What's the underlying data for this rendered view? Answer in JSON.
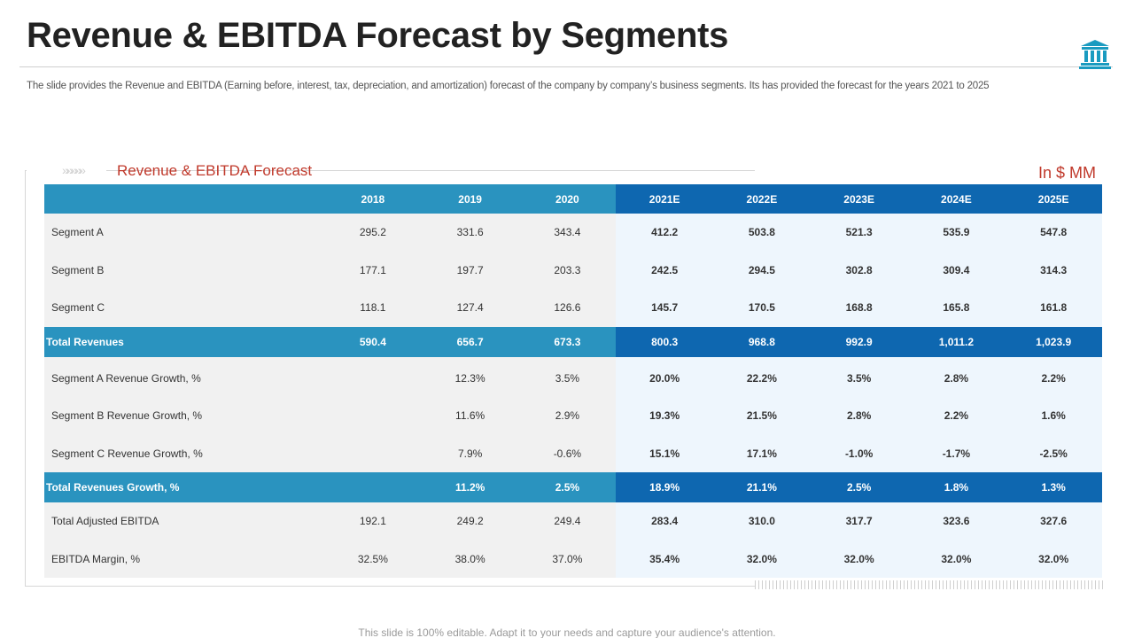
{
  "header": {
    "title": "Revenue & EBITDA Forecast by Segments",
    "subtitle": "The slide provides the Revenue and EBITDA (Earning before, interest, tax,  depreciation, and amortization) forecast of the company by company’s business segments. Its has provided the forecast for the years 2021 to 2025",
    "icon": "bank-icon"
  },
  "section": {
    "title": "Revenue & EBITDA Forecast",
    "unit": "In $ MM",
    "chevrons": "»»»»»"
  },
  "colors": {
    "historical_header": "#2a93bf",
    "forecast_header": "#0e67b0",
    "accent_red": "#c0392b"
  },
  "table": {
    "columns": [
      "2018",
      "2019",
      "2020",
      "2021E",
      "2022E",
      "2023E",
      "2024E",
      "2025E"
    ],
    "rows": [
      {
        "label": "Segment A",
        "values": [
          "295.2",
          "331.6",
          "343.4",
          "412.2",
          "503.8",
          "521.3",
          "535.9",
          "547.8"
        ]
      },
      {
        "label": "Segment B",
        "values": [
          "177.1",
          "197.7",
          "203.3",
          "242.5",
          "294.5",
          "302.8",
          "309.4",
          "314.3"
        ]
      },
      {
        "label": "Segment C",
        "values": [
          "118.1",
          "127.4",
          "126.6",
          "145.7",
          "170.5",
          "168.8",
          "165.8",
          "161.8"
        ]
      },
      {
        "label": "Total Revenues",
        "values": [
          "590.4",
          "656.7",
          "673.3",
          "800.3",
          "968.8",
          "992.9",
          "1,011.2",
          "1,023.9"
        ]
      },
      {
        "label": "Segment A Revenue Growth, %",
        "values": [
          "",
          "12.3%",
          "3.5%",
          "20.0%",
          "22.2%",
          "3.5%",
          "2.8%",
          "2.2%"
        ]
      },
      {
        "label": "Segment B Revenue Growth, %",
        "values": [
          "",
          "11.6%",
          "2.9%",
          "19.3%",
          "21.5%",
          "2.8%",
          "2.2%",
          "1.6%"
        ]
      },
      {
        "label": "Segment C Revenue Growth, %",
        "values": [
          "",
          "7.9%",
          "-0.6%",
          "15.1%",
          "17.1%",
          "-1.0%",
          "-1.7%",
          "-2.5%"
        ]
      },
      {
        "label": "Total Revenues Growth, %",
        "values": [
          "",
          "11.2%",
          "2.5%",
          "18.9%",
          "21.1%",
          "2.5%",
          "1.8%",
          "1.3%"
        ]
      },
      {
        "label": "Total Adjusted EBITDA",
        "values": [
          "192.1",
          "249.2",
          "249.4",
          "283.4",
          "310.0",
          "317.7",
          "323.6",
          "327.6"
        ]
      },
      {
        "label": "EBITDA Margin, %",
        "values": [
          "32.5%",
          "38.0%",
          "37.0%",
          "35.4%",
          "32.0%",
          "32.0%",
          "32.0%",
          "32.0%"
        ]
      }
    ]
  },
  "footer": {
    "text": "This slide is 100% editable. Adapt it to your needs and capture your audience's attention."
  }
}
